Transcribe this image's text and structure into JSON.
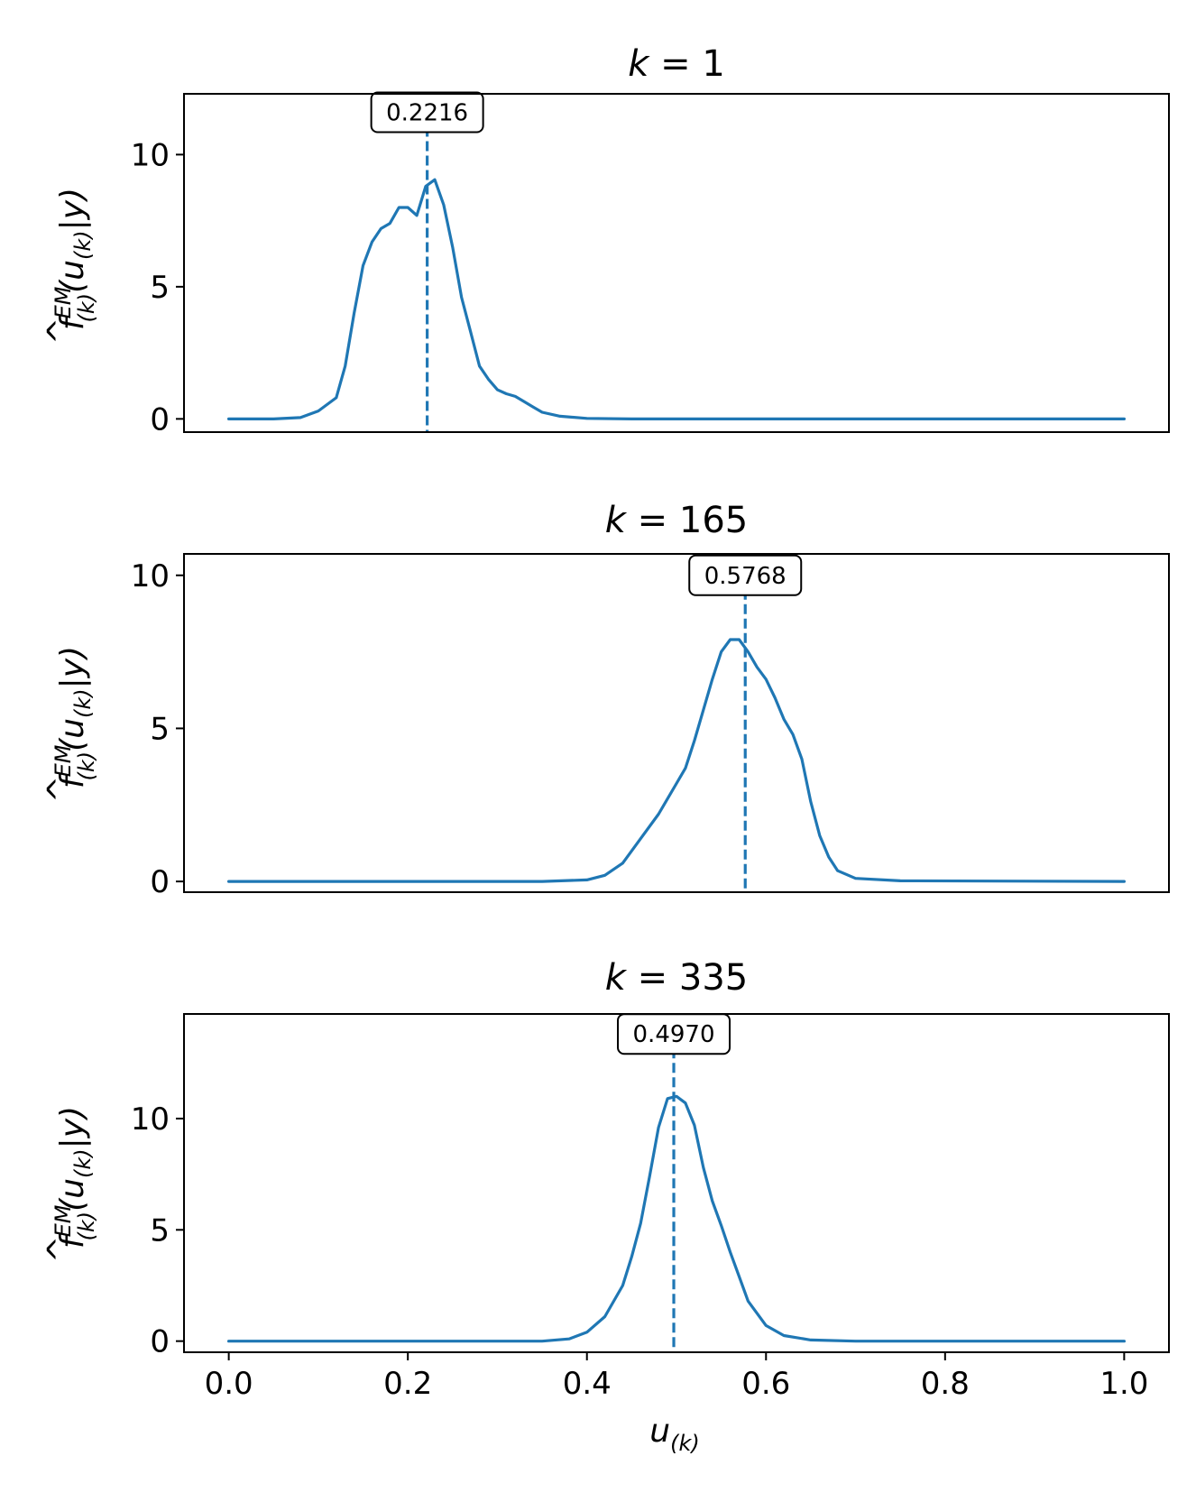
{
  "figure": {
    "y_axis_label": {
      "f": "f",
      "hat": "^",
      "sup": "EM",
      "sub": "(k)",
      "open": "(u",
      "inner_sub": "(k)",
      "close": "|y)"
    },
    "x_axis_label": {
      "base": "u",
      "sub": "(k)"
    }
  },
  "chart_data": [
    {
      "type": "line",
      "title": "k = 1",
      "title_var": "k",
      "title_eq": "= 1",
      "xlim": [
        -0.05,
        1.05
      ],
      "ylim": [
        -0.5,
        12.3
      ],
      "x_ticks": [
        "0.0",
        "0.2",
        "0.4",
        "0.6",
        "0.8",
        "1.0"
      ],
      "show_x_ticks": false,
      "y_ticks": [
        0,
        5,
        10
      ],
      "y_tick_labels": [
        "0",
        "5",
        "10"
      ],
      "series_color": "#1f77b4",
      "series": [
        {
          "name": "density",
          "x": [
            0.0,
            0.05,
            0.08,
            0.1,
            0.12,
            0.13,
            0.14,
            0.15,
            0.16,
            0.17,
            0.18,
            0.19,
            0.2,
            0.21,
            0.22,
            0.23,
            0.24,
            0.25,
            0.26,
            0.27,
            0.28,
            0.29,
            0.3,
            0.31,
            0.32,
            0.33,
            0.34,
            0.35,
            0.37,
            0.4,
            0.45,
            0.5,
            0.6,
            0.8,
            1.0
          ],
          "y": [
            0.0,
            0.0,
            0.05,
            0.3,
            0.8,
            2.0,
            4.0,
            5.8,
            6.7,
            7.2,
            7.4,
            8.0,
            8.0,
            7.7,
            8.8,
            9.05,
            8.1,
            6.5,
            4.6,
            3.3,
            2.0,
            1.5,
            1.1,
            0.95,
            0.85,
            0.65,
            0.45,
            0.25,
            0.1,
            0.02,
            0.0,
            0.0,
            0.0,
            0.0,
            0.0
          ]
        }
      ],
      "marker": {
        "x": 0.2216,
        "label": "0.2216",
        "label_y": 11.6
      }
    },
    {
      "type": "line",
      "title": "k = 165",
      "title_var": "k",
      "title_eq": "= 165",
      "xlim": [
        -0.05,
        1.05
      ],
      "ylim": [
        -0.35,
        10.7
      ],
      "x_ticks": [
        "0.0",
        "0.2",
        "0.4",
        "0.6",
        "0.8",
        "1.0"
      ],
      "show_x_ticks": false,
      "y_ticks": [
        0,
        5,
        10
      ],
      "y_tick_labels": [
        "0",
        "5",
        "10"
      ],
      "series_color": "#1f77b4",
      "series": [
        {
          "name": "density",
          "x": [
            0.0,
            0.35,
            0.4,
            0.42,
            0.44,
            0.46,
            0.48,
            0.5,
            0.51,
            0.52,
            0.53,
            0.54,
            0.55,
            0.56,
            0.57,
            0.58,
            0.59,
            0.6,
            0.61,
            0.62,
            0.63,
            0.64,
            0.65,
            0.66,
            0.67,
            0.68,
            0.7,
            0.75,
            1.0
          ],
          "y": [
            0.0,
            0.0,
            0.05,
            0.2,
            0.6,
            1.4,
            2.2,
            3.2,
            3.7,
            4.6,
            5.6,
            6.6,
            7.5,
            7.9,
            7.9,
            7.5,
            7.0,
            6.6,
            6.0,
            5.3,
            4.8,
            4.0,
            2.6,
            1.5,
            0.8,
            0.35,
            0.1,
            0.02,
            0.0
          ]
        }
      ],
      "marker": {
        "x": 0.5768,
        "label": "0.5768",
        "label_y": 10.0
      }
    },
    {
      "type": "line",
      "title": "k = 335",
      "title_var": "k",
      "title_eq": "= 335",
      "xlim": [
        -0.05,
        1.05
      ],
      "ylim": [
        -0.5,
        14.7
      ],
      "x_ticks": [
        "0.0",
        "0.2",
        "0.4",
        "0.6",
        "0.8",
        "1.0"
      ],
      "show_x_ticks": true,
      "y_ticks": [
        0,
        5,
        10
      ],
      "y_tick_labels": [
        "0",
        "5",
        "10"
      ],
      "series_color": "#1f77b4",
      "series": [
        {
          "name": "density",
          "x": [
            0.0,
            0.35,
            0.38,
            0.4,
            0.42,
            0.44,
            0.45,
            0.46,
            0.47,
            0.48,
            0.49,
            0.5,
            0.51,
            0.52,
            0.53,
            0.54,
            0.55,
            0.56,
            0.57,
            0.58,
            0.6,
            0.62,
            0.65,
            0.7,
            1.0
          ],
          "y": [
            0.0,
            0.0,
            0.1,
            0.4,
            1.1,
            2.5,
            3.8,
            5.3,
            7.4,
            9.6,
            10.9,
            11.0,
            10.7,
            9.7,
            7.8,
            6.3,
            5.2,
            4.0,
            2.9,
            1.8,
            0.7,
            0.25,
            0.05,
            0.0,
            0.0
          ]
        }
      ],
      "marker": {
        "x": 0.497,
        "label": "0.4970",
        "label_y": 13.8
      }
    }
  ]
}
